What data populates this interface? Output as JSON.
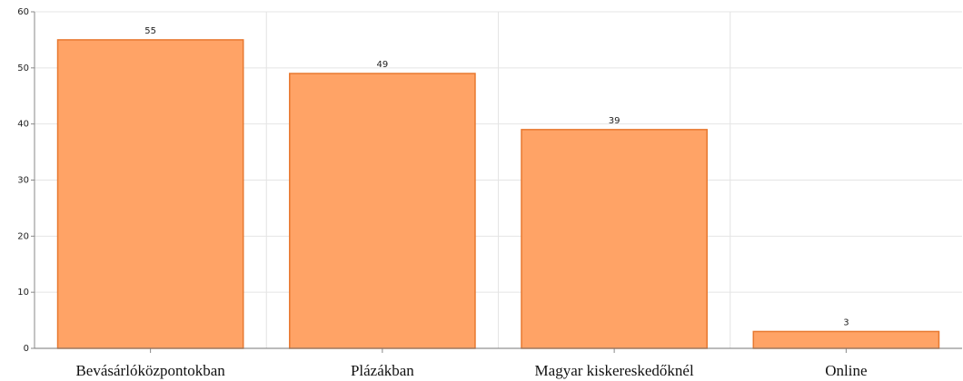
{
  "chart_data": {
    "type": "bar",
    "categories": [
      "Bevásárlóközpontokban",
      "Plázákban",
      "Magyar kiskereskedőknél",
      "Online"
    ],
    "values": [
      55,
      49,
      39,
      3
    ],
    "color": "#ffa366",
    "edge_color": "#e8782f",
    "ylim": [
      0,
      60
    ],
    "yticks": [
      0,
      10,
      20,
      30,
      40,
      50,
      60
    ],
    "grid": true
  }
}
